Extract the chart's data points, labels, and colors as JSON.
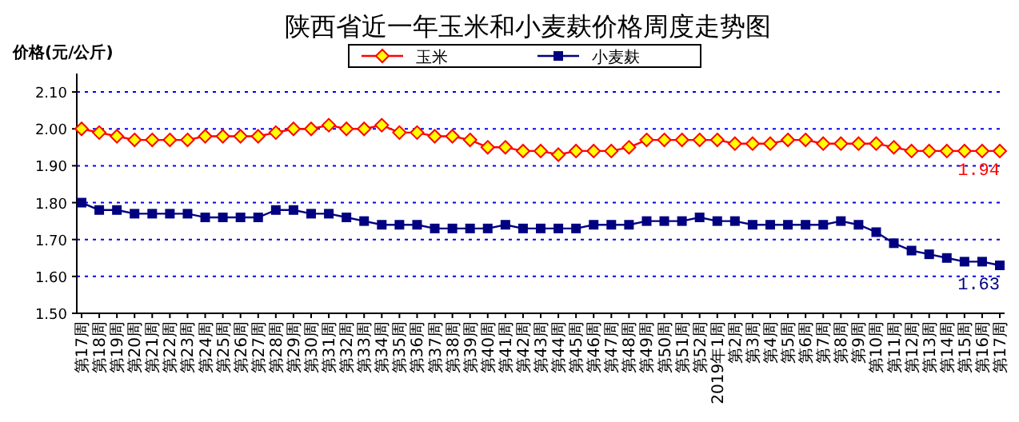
{
  "chart_data": {
    "type": "line",
    "title": "陕西省近一年玉米和小麦麸价格周度走势图",
    "ylabel": "价格(元/公斤)",
    "categories": [
      "第17周",
      "第18周",
      "第19周",
      "第20周",
      "第21周",
      "第22周",
      "第23周",
      "第24周",
      "第25周",
      "第26周",
      "第27周",
      "第28周",
      "第29周",
      "第30周",
      "第31周",
      "第32周",
      "第33周",
      "第34周",
      "第35周",
      "第36周",
      "第37周",
      "第38周",
      "第39周",
      "第40周",
      "第41周",
      "第42周",
      "第43周",
      "第44周",
      "第45周",
      "第46周",
      "第47周",
      "第48周",
      "第49周",
      "第50周",
      "第51周",
      "第52周",
      "2019年1周",
      "第2周",
      "第3周",
      "第4周",
      "第5周",
      "第6周",
      "第7周",
      "第8周",
      "第9周",
      "第10周",
      "第11周",
      "第12周",
      "第13周",
      "第14周",
      "第15周",
      "第16周",
      "第17周"
    ],
    "series": [
      {
        "name": "玉米",
        "color": "#ff0000",
        "marker": "diamond",
        "values": [
          2.0,
          1.99,
          1.98,
          1.97,
          1.97,
          1.97,
          1.97,
          1.98,
          1.98,
          1.98,
          1.98,
          1.99,
          2.0,
          2.0,
          2.01,
          2.0,
          2.0,
          2.01,
          1.99,
          1.99,
          1.98,
          1.98,
          1.97,
          1.95,
          1.95,
          1.94,
          1.94,
          1.93,
          1.94,
          1.94,
          1.94,
          1.95,
          1.97,
          1.97,
          1.97,
          1.97,
          1.97,
          1.96,
          1.96,
          1.96,
          1.97,
          1.97,
          1.96,
          1.96,
          1.96,
          1.96,
          1.95,
          1.94,
          1.94,
          1.94,
          1.94,
          1.94,
          1.94
        ],
        "value_labels": [
          null,
          null,
          null,
          null,
          null,
          null,
          null,
          null,
          null,
          null,
          null,
          null,
          null,
          null,
          null,
          null,
          null,
          null,
          null,
          null,
          null,
          null,
          null,
          null,
          null,
          null,
          null,
          null,
          null,
          null,
          null,
          null,
          null,
          null,
          null,
          null,
          null,
          null,
          null,
          null,
          null,
          null,
          null,
          null,
          null,
          null,
          null,
          null,
          null,
          null,
          null,
          null,
          "1.94"
        ]
      },
      {
        "name": "小麦麸",
        "color": "#000080",
        "marker": "square",
        "values": [
          1.8,
          1.78,
          1.78,
          1.77,
          1.77,
          1.77,
          1.77,
          1.76,
          1.76,
          1.76,
          1.76,
          1.78,
          1.78,
          1.77,
          1.77,
          1.76,
          1.75,
          1.74,
          1.74,
          1.74,
          1.73,
          1.73,
          1.73,
          1.73,
          1.74,
          1.73,
          1.73,
          1.73,
          1.73,
          1.74,
          1.74,
          1.74,
          1.75,
          1.75,
          1.75,
          1.76,
          1.75,
          1.75,
          1.74,
          1.74,
          1.74,
          1.74,
          1.74,
          1.75,
          1.74,
          1.72,
          1.69,
          1.67,
          1.66,
          1.65,
          1.64,
          1.64,
          1.63
        ],
        "value_labels": [
          null,
          null,
          null,
          null,
          null,
          null,
          null,
          null,
          null,
          null,
          null,
          null,
          null,
          null,
          null,
          null,
          null,
          null,
          null,
          null,
          null,
          null,
          null,
          null,
          null,
          null,
          null,
          null,
          null,
          null,
          null,
          null,
          null,
          null,
          null,
          null,
          null,
          null,
          null,
          null,
          null,
          null,
          null,
          null,
          null,
          null,
          null,
          null,
          null,
          null,
          null,
          null,
          "1.63"
        ]
      }
    ],
    "ylim": [
      1.5,
      2.15
    ],
    "yticks": [
      {
        "value": 1.5,
        "label": "1.50"
      },
      {
        "value": 1.6,
        "label": "1.60"
      },
      {
        "value": 1.7,
        "label": "1.70"
      },
      {
        "value": 1.8,
        "label": "1.80"
      },
      {
        "value": 1.9,
        "label": "1.90"
      },
      {
        "value": 2.0,
        "label": "2.00"
      },
      {
        "value": 2.1,
        "label": "2.10"
      }
    ],
    "grid": "y",
    "legend": "top"
  }
}
